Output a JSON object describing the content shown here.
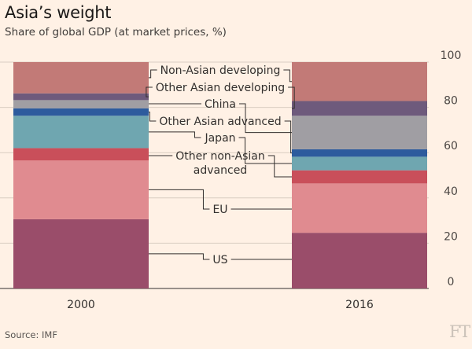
{
  "title": "Asia’s weight",
  "subtitle": "Share of global GDP (at market prices, %)",
  "source": "Source: IMF",
  "logo": "FT",
  "chart_data": {
    "type": "bar",
    "stacked": true,
    "categories": [
      "2000",
      "2016"
    ],
    "ylim": [
      0,
      100
    ],
    "yticks": [
      0,
      20,
      40,
      60,
      80,
      100
    ],
    "grid": true,
    "series": [
      {
        "name": "US",
        "color": "#9a4d6a",
        "values": [
          30.6,
          24.6
        ]
      },
      {
        "name": "EU",
        "color": "#e08b90",
        "values": [
          26.0,
          21.8
        ]
      },
      {
        "name": "Other non-Asian advanced",
        "color": "#c94f5a",
        "values": [
          5.4,
          5.8
        ]
      },
      {
        "name": "Japan",
        "color": "#6fa6b0",
        "values": [
          14.3,
          6.0
        ]
      },
      {
        "name": "Other Asian advanced",
        "color": "#2d5b9d",
        "values": [
          3.3,
          3.3
        ]
      },
      {
        "name": "China",
        "color": "#a09ea3",
        "values": [
          3.6,
          14.8
        ]
      },
      {
        "name": "Other Asian developing",
        "color": "#6e5a7c",
        "values": [
          3.0,
          6.5
        ]
      },
      {
        "name": "Non-Asian developing",
        "color": "#c27a77",
        "values": [
          13.8,
          17.2
        ]
      }
    ]
  }
}
